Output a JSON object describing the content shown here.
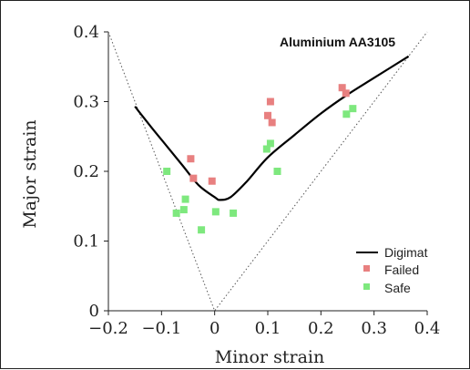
{
  "chart_data": {
    "type": "scatter",
    "title": "Aluminium AA3105",
    "xlabel": "Minor strain",
    "ylabel": "Major strain",
    "xlim": [
      -0.2,
      0.4
    ],
    "ylim": [
      0,
      0.4
    ],
    "xticks": [
      "−0.2",
      "−0.1",
      "0",
      "0.1",
      "0.2",
      "0.3",
      "0.4"
    ],
    "yticks": [
      "0",
      "0.1",
      "0.2",
      "0.3",
      "0.4"
    ],
    "xtick_values": [
      -0.2,
      -0.1,
      0,
      0.1,
      0.2,
      0.3,
      0.4
    ],
    "ytick_values": [
      0,
      0.1,
      0.2,
      0.3,
      0.4
    ],
    "grid": false,
    "legend_position": "bottom-right",
    "legend": [
      "Digimat",
      "Failed",
      "Safe"
    ],
    "colors": {
      "digimat": "#000000",
      "failed": "#e88080",
      "safe": "#7ee87e",
      "guide": "#555555"
    },
    "series": [
      {
        "name": "Digimat",
        "kind": "line",
        "x": [
          -0.15,
          -0.12,
          -0.09,
          -0.06,
          -0.03,
          0.0,
          0.01,
          0.03,
          0.06,
          0.1,
          0.15,
          0.2,
          0.25,
          0.3,
          0.365
        ],
        "y": [
          0.293,
          0.264,
          0.236,
          0.208,
          0.18,
          0.163,
          0.159,
          0.163,
          0.185,
          0.22,
          0.252,
          0.283,
          0.31,
          0.334,
          0.365
        ]
      },
      {
        "name": "Failed",
        "kind": "scatter",
        "x": [
          -0.045,
          -0.04,
          -0.005,
          0.1,
          0.105,
          0.108,
          0.24,
          0.247
        ],
        "y": [
          0.218,
          0.19,
          0.186,
          0.28,
          0.3,
          0.27,
          0.32,
          0.312
        ]
      },
      {
        "name": "Safe",
        "kind": "scatter",
        "x": [
          -0.09,
          -0.072,
          -0.058,
          -0.055,
          -0.025,
          0.002,
          0.035,
          0.098,
          0.105,
          0.118,
          0.248,
          0.26
        ],
        "y": [
          0.2,
          0.14,
          0.145,
          0.16,
          0.116,
          0.142,
          0.14,
          0.232,
          0.24,
          0.2,
          0.282,
          0.29
        ]
      },
      {
        "name": "",
        "kind": "guide",
        "x": [
          -0.2,
          0.0,
          0.4
        ],
        "y": [
          0.4,
          0.0,
          0.4
        ]
      }
    ]
  }
}
